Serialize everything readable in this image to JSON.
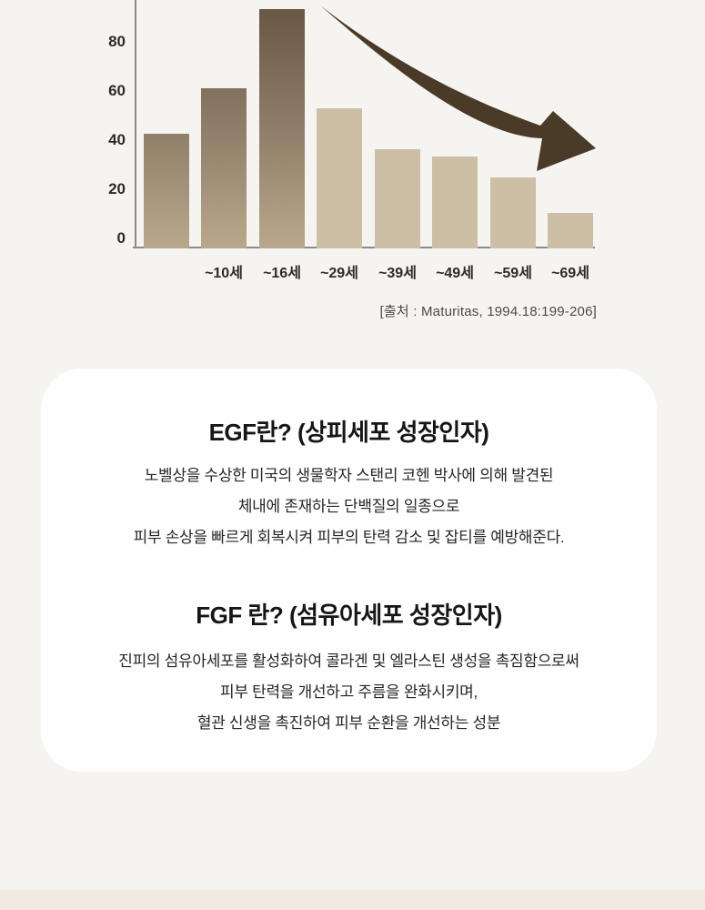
{
  "chart_data": {
    "type": "bar",
    "title": "",
    "xlabel": "",
    "ylabel": "",
    "categories": [
      "",
      "~10세",
      "~16세",
      "~29세",
      "~39세",
      "~49세",
      "~59세",
      "~69세"
    ],
    "values": [
      45,
      63,
      94,
      55,
      39,
      36,
      28,
      14
    ],
    "yticks": [
      0,
      20,
      40,
      60,
      80
    ],
    "ylim": [
      0,
      99
    ],
    "grid": false,
    "legend": false,
    "note": "chart top is cropped; tallest bar exceeds visible axis",
    "annotation": "declining curved arrow over bars",
    "source": "[출처 : Maturitas, 1994.18:199-206]",
    "colors": {
      "bar_dark_top": "#695843",
      "bar_dark_bottom": "#b9a78d",
      "bar_light": "#cdbea6",
      "arrow": "#4a3a28",
      "axis": "#8e8a85",
      "tick_text": "#2d2b28",
      "source_text": "#4b4a48"
    }
  },
  "info_card": {
    "background": "#fefefe",
    "egf": {
      "title": "EGF란? (상피세포 성장인자)",
      "lines": [
        "노벨상을 수상한 미국의 생물학자 스탠리 코헨 박사에 의해 발견된",
        "체내에 존재하는 단백질의 일종으로",
        "피부 손상을 빠르게 회복시켜 피부의 탄력 감소 및 잡티를 예방해준다."
      ]
    },
    "fgf": {
      "title": "FGF 란? (섬유아세포 성장인자)",
      "lines": [
        "진피의 섬유아세포를 활성화하여 콜라겐 및 엘라스틴 생성을 촉짐함으로써",
        "피부 탄력을 개선하고 주름을 완화시키며,",
        "혈관 신생을 촉진하여 피부 순환을 개선하는 성분"
      ]
    }
  },
  "page": {
    "background": "#f6f4f1",
    "bottom_strip": "#f0eae1"
  }
}
